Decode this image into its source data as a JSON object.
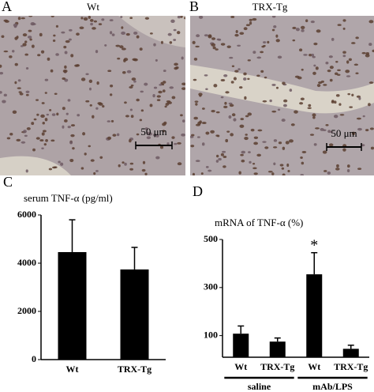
{
  "panels": [
    {
      "letter": "A",
      "label": "Wt",
      "scale_bar": "50 μm"
    },
    {
      "letter": "B",
      "label": "TRX-Tg",
      "scale_bar": "50 μm"
    }
  ],
  "chart_data": [
    {
      "type": "bar",
      "letter": "C",
      "title": "serum TNF-α (pg/ml)",
      "categories": [
        "Wt",
        "TRX-Tg"
      ],
      "values": [
        4460,
        3740
      ],
      "errors": [
        1340,
        915
      ],
      "color": "#000000",
      "ylim": [
        0,
        6000
      ],
      "yticks": [
        0,
        2000,
        4000,
        6000
      ]
    },
    {
      "type": "bar",
      "letter": "D",
      "title": "mRNA of TNF-α (%)",
      "categories": [
        "Wt",
        "TRX-Tg",
        "Wt",
        "TRX-Tg"
      ],
      "values": [
        108,
        75,
        355,
        45
      ],
      "errors": [
        32,
        15,
        90,
        15
      ],
      "groups": [
        "saline",
        "mAb/LPS"
      ],
      "annotations": [
        {
          "text": "*",
          "group": "mAb/LPS",
          "category": "Wt"
        }
      ],
      "color": "#000000",
      "ylim": [
        10,
        500
      ],
      "yticks": [
        100,
        300,
        500
      ]
    }
  ]
}
